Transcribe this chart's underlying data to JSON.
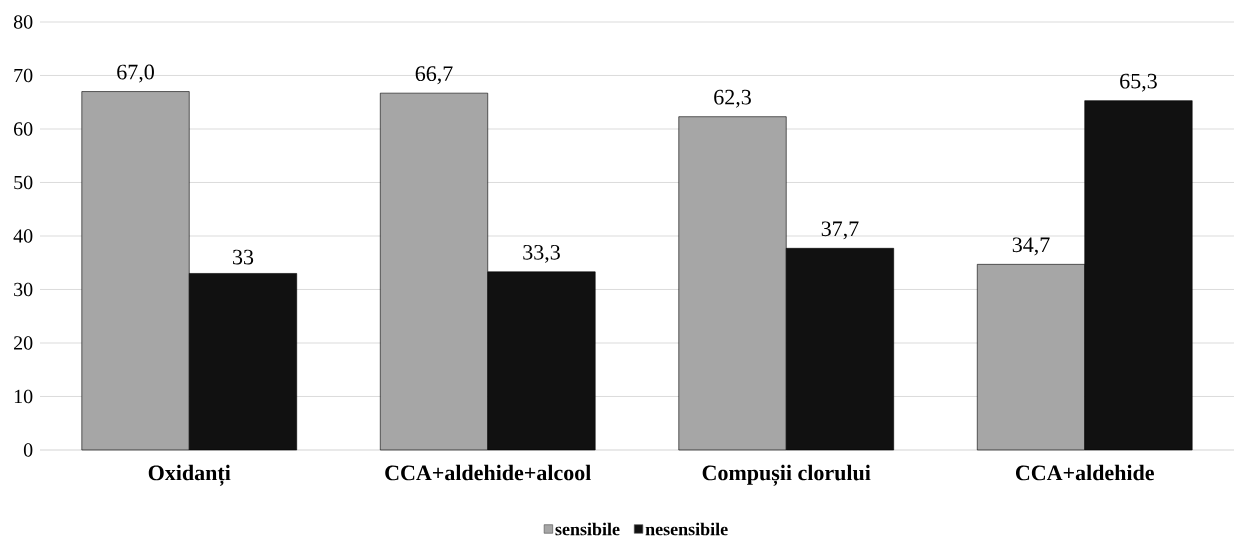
{
  "chart_data": {
    "type": "bar",
    "categories": [
      "Oxidanți",
      "CCA+aldehide+alcool",
      "Compușii clorului",
      "CCA+aldehide"
    ],
    "series": [
      {
        "name": "sensibile",
        "color": "#a6a6a6",
        "values": [
          67.0,
          66.7,
          62.3,
          34.7
        ],
        "value_labels": [
          "67,0",
          "66,7",
          "62,3",
          "34,7"
        ]
      },
      {
        "name": "nesensibile",
        "color": "#111111",
        "values": [
          33,
          33.3,
          37.7,
          65.3
        ],
        "value_labels": [
          "33",
          "33,3",
          "37,7",
          "65,3"
        ]
      }
    ],
    "ylim": [
      0,
      80
    ],
    "yticks": [
      0,
      10,
      20,
      30,
      40,
      50,
      60,
      70,
      80
    ],
    "grid": "y",
    "legend": "bottom"
  }
}
